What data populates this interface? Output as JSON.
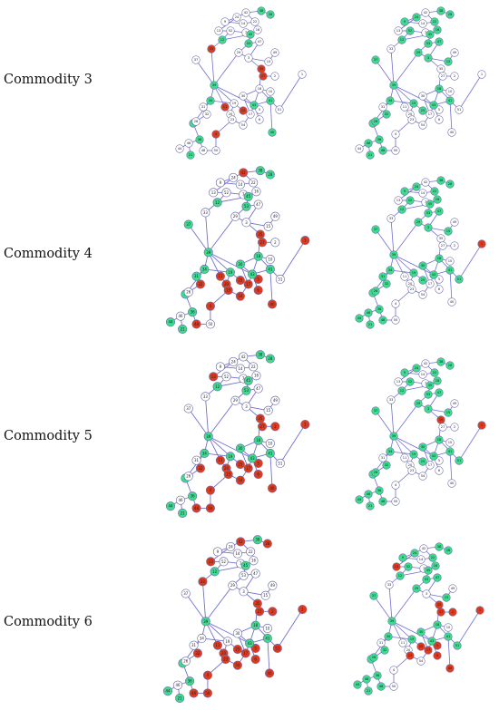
{
  "colors": {
    "white": "#ffffff",
    "green": "#3ddc8f",
    "red": "#e03a1e",
    "edge": "#6f6fd0"
  },
  "graph": {
    "nodes": [
      {
        "id": "a",
        "label": "42"
      },
      {
        "id": "b",
        "label": "38"
      },
      {
        "id": "c",
        "label": "28"
      },
      {
        "id": "d",
        "label": "24"
      },
      {
        "id": "e",
        "label": "9"
      },
      {
        "id": "f",
        "label": "14"
      },
      {
        "id": "g",
        "label": "22"
      },
      {
        "id": "h",
        "label": "13"
      },
      {
        "id": "i",
        "label": "52"
      },
      {
        "id": "j",
        "label": "7"
      },
      {
        "id": "k",
        "label": "12"
      },
      {
        "id": "l",
        "label": "45"
      },
      {
        "id": "m",
        "label": "16"
      },
      {
        "id": "n",
        "label": "53"
      },
      {
        "id": "o",
        "label": "47"
      },
      {
        "id": "p",
        "label": "33"
      },
      {
        "id": "q",
        "label": "29"
      },
      {
        "id": "r",
        "label": "3"
      },
      {
        "id": "s",
        "label": "35"
      },
      {
        "id": "t",
        "label": "15"
      },
      {
        "id": "u",
        "label": "27"
      },
      {
        "id": "v",
        "label": "2"
      },
      {
        "id": "w",
        "label": "37"
      },
      {
        "id": "x",
        "label": "39"
      },
      {
        "id": "y",
        "label": "18"
      },
      {
        "id": "z",
        "label": "30"
      },
      {
        "id": "aa",
        "label": "10"
      },
      {
        "id": "ab",
        "label": "34"
      },
      {
        "id": "ac",
        "label": "11"
      },
      {
        "id": "ad",
        "label": "19"
      },
      {
        "id": "ae",
        "label": "31"
      },
      {
        "id": "af",
        "label": "20"
      },
      {
        "id": "ag",
        "label": "1"
      },
      {
        "id": "ah",
        "label": "5"
      },
      {
        "id": "ai",
        "label": "17"
      },
      {
        "id": "aj",
        "label": "41"
      },
      {
        "id": "ak",
        "label": "25"
      },
      {
        "id": "al",
        "label": "23"
      },
      {
        "id": "am",
        "label": "43"
      },
      {
        "id": "an",
        "label": "54"
      },
      {
        "id": "ao",
        "label": "32"
      },
      {
        "id": "ap",
        "label": "40"
      },
      {
        "id": "aq",
        "label": "6"
      },
      {
        "id": "ar",
        "label": "44"
      },
      {
        "id": "as",
        "label": "36"
      },
      {
        "id": "at",
        "label": "46"
      },
      {
        "id": "au",
        "label": "8"
      },
      {
        "id": "av",
        "label": "21"
      },
      {
        "id": "aw",
        "label": "49"
      },
      {
        "id": "ax",
        "label": "26"
      },
      {
        "id": "ay",
        "label": "4"
      },
      {
        "id": "az",
        "label": "48"
      },
      {
        "id": "ba",
        "label": "50"
      },
      {
        "id": "bb",
        "label": "51"
      }
    ]
  },
  "rows": [
    {
      "label": "Commodity 3",
      "panels": [
        {
          "green": [
            "b",
            "c",
            "k",
            "l",
            "n",
            "aj",
            "x",
            "ab",
            "am",
            "ap",
            "as",
            "au",
            "av"
          ],
          "red": [
            "p",
            "s",
            "u",
            "ac",
            "ak",
            "ay"
          ]
        },
        {
          "green": [
            "b",
            "c",
            "d",
            "e",
            "g",
            "i",
            "k",
            "l",
            "m",
            "n",
            "o",
            "q",
            "r",
            "t",
            "w",
            "x",
            "y",
            "ab",
            "ad",
            "aj",
            "ak",
            "am",
            "ao",
            "as",
            "at",
            "au",
            "av",
            "ax",
            "az"
          ],
          "red": []
        }
      ]
    },
    {
      "label": "Commodity 4",
      "panels": [
        {
          "green": [
            "b",
            "c",
            "k",
            "l",
            "n",
            "w",
            "x",
            "y",
            "z",
            "ab",
            "ad",
            "ae",
            "aj",
            "am",
            "as",
            "au",
            "av",
            "ar"
          ],
          "red": [
            "a",
            "s",
            "u",
            "ac",
            "af",
            "ag",
            "ah",
            "ai",
            "ak",
            "al",
            "an",
            "ao",
            "ap",
            "aq",
            "ay",
            "az"
          ]
        },
        {
          "green": [
            "b",
            "c",
            "d",
            "e",
            "g",
            "i",
            "k",
            "l",
            "m",
            "n",
            "o",
            "q",
            "r",
            "t",
            "w",
            "x",
            "y",
            "z",
            "ab",
            "ad",
            "ae",
            "aj",
            "ak",
            "am",
            "ao",
            "as",
            "at",
            "au",
            "av",
            "ar",
            "ax",
            "az",
            "bb"
          ],
          "red": [
            "ag"
          ]
        }
      ]
    },
    {
      "label": "Commodity 5",
      "panels": [
        {
          "green": [
            "b",
            "c",
            "k",
            "l",
            "n",
            "x",
            "y",
            "z",
            "ab",
            "ad",
            "aj",
            "am",
            "as",
            "au",
            "av",
            "ar"
          ],
          "red": [
            "h",
            "s",
            "u",
            "v",
            "ac",
            "af",
            "ag",
            "ah",
            "ai",
            "ak",
            "al",
            "an",
            "ao",
            "ap",
            "aq",
            "ay",
            "az",
            "ba"
          ]
        },
        {
          "green": [
            "b",
            "c",
            "d",
            "e",
            "g",
            "i",
            "k",
            "l",
            "m",
            "n",
            "o",
            "q",
            "r",
            "t",
            "w",
            "x",
            "y",
            "z",
            "ab",
            "ad",
            "aj",
            "ak",
            "am",
            "ao",
            "as",
            "at",
            "au",
            "av",
            "ar",
            "ax",
            "az",
            "bb"
          ],
          "red": [
            "s",
            "ag"
          ]
        }
      ]
    },
    {
      "label": "Commodity 6",
      "panels": [
        {
          "green": [
            "b",
            "k",
            "l",
            "x",
            "y",
            "aj",
            "am",
            "as",
            "au",
            "av",
            "ar"
          ],
          "red": [
            "a",
            "c",
            "h",
            "p",
            "s",
            "u",
            "v",
            "ac",
            "af",
            "ag",
            "ah",
            "ai",
            "ak",
            "al",
            "an",
            "ao",
            "ap",
            "aq",
            "ay",
            "az",
            "ba",
            "bb"
          ]
        },
        {
          "green": [
            "b",
            "c",
            "d",
            "e",
            "g",
            "i",
            "k",
            "l",
            "m",
            "n",
            "o",
            "q",
            "t",
            "w",
            "x",
            "y",
            "z",
            "ab",
            "ad",
            "aj",
            "am",
            "ao",
            "as",
            "at",
            "au",
            "av",
            "ar",
            "ax",
            "az",
            "bb"
          ],
          "red": [
            "h",
            "s",
            "u",
            "v",
            "ag",
            "ah",
            "ai",
            "ak",
            "al",
            "ap",
            "aq"
          ]
        }
      ]
    }
  ]
}
